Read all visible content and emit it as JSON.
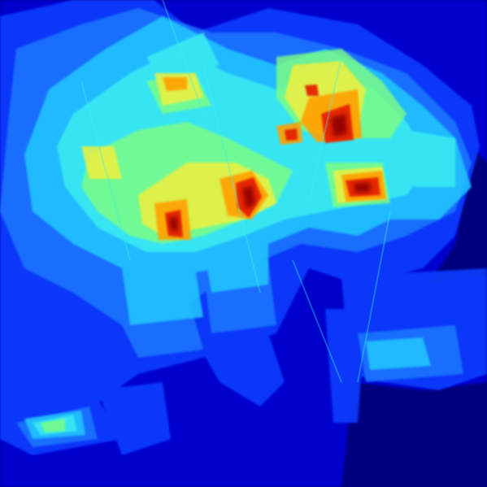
{
  "image": {
    "kind": "heatmap-overlay",
    "colormap": "jet",
    "palette": {
      "background": "#00007f",
      "deep_blue": "#0000c8",
      "blue": "#0a3cff",
      "light_blue": "#1e78ff",
      "cyan": "#21c8ff",
      "aqua": "#3cf0f0",
      "green": "#7fff7f",
      "yellow": "#f0f03c",
      "orange": "#ffa000",
      "red": "#e62000",
      "dark_red": "#8c0000"
    }
  }
}
